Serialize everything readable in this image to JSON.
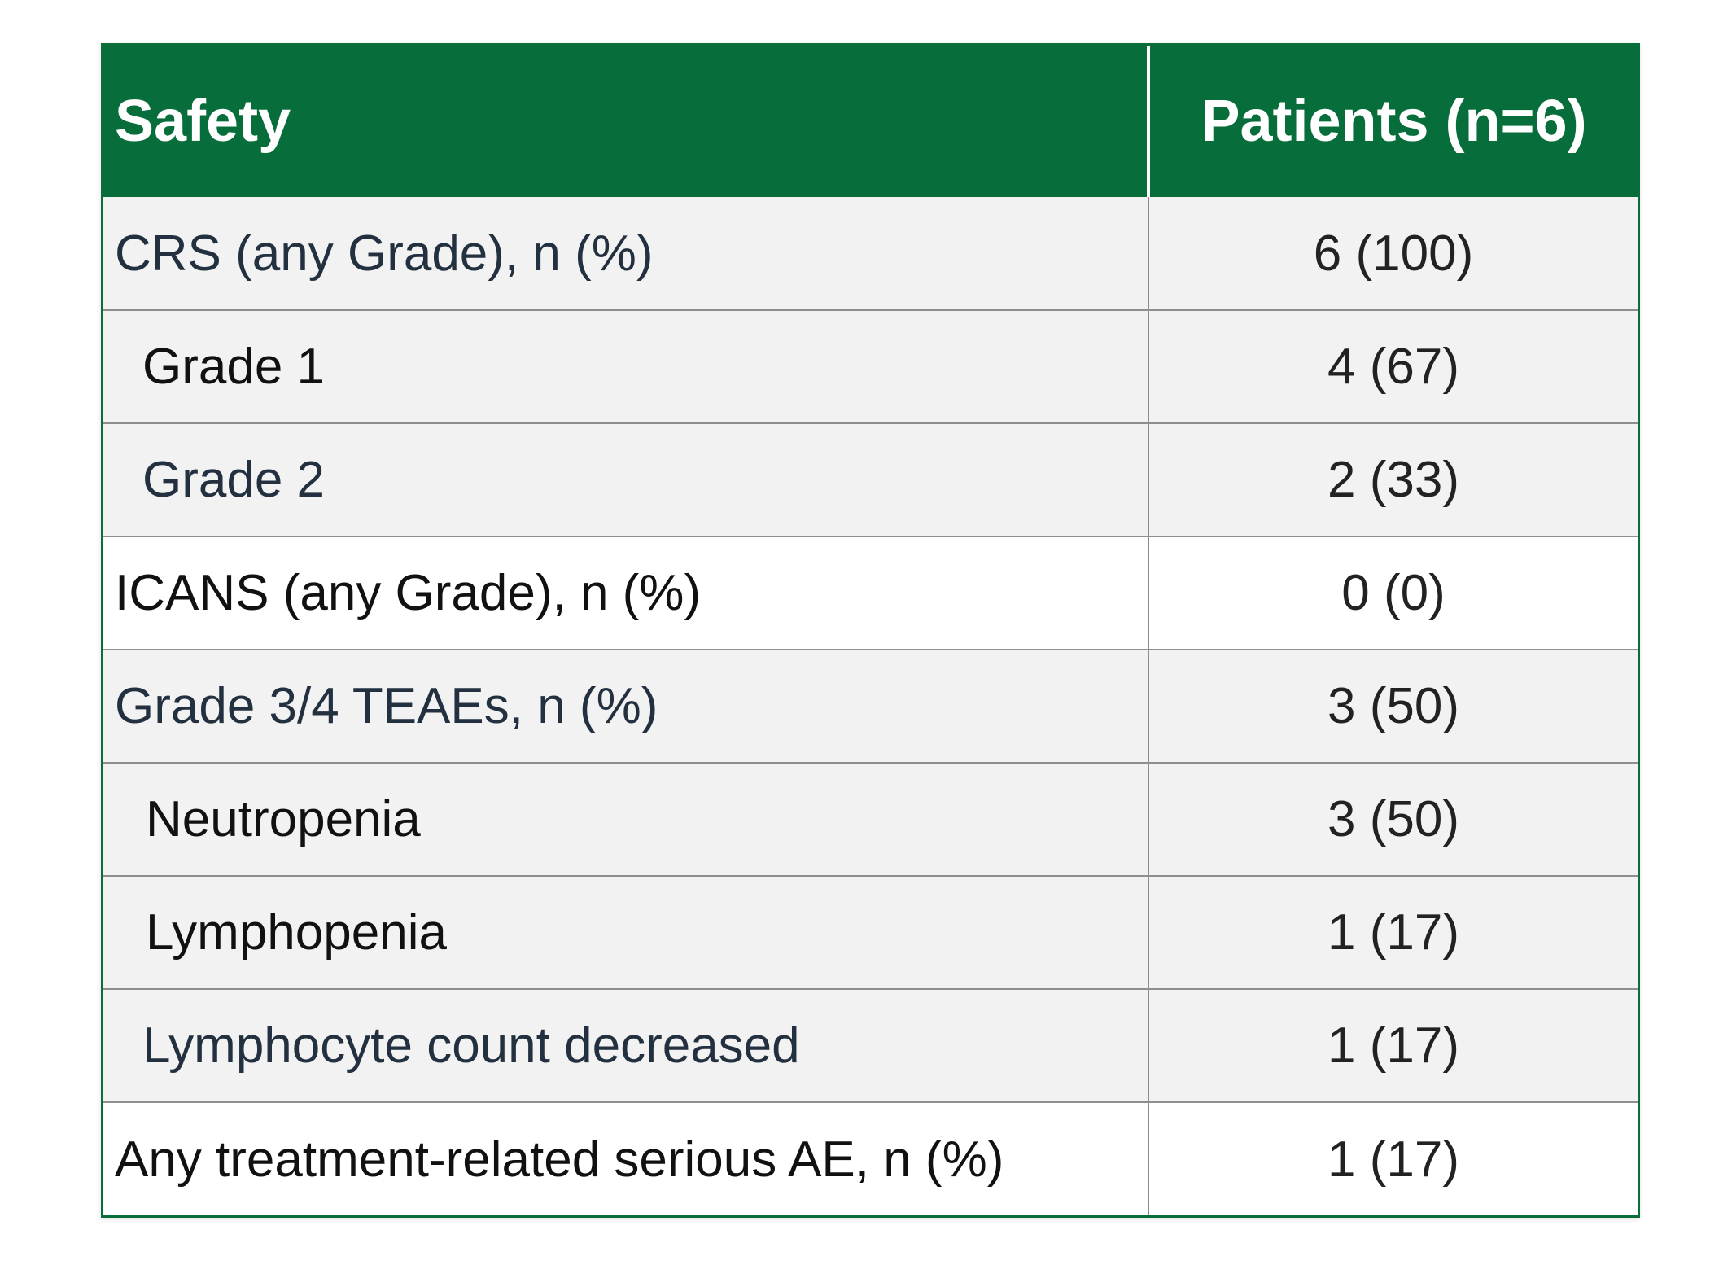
{
  "table": {
    "headers": {
      "safety": "Safety",
      "patients": "Patients (n=6)"
    },
    "rows": [
      {
        "label": "CRS (any Grade), n (%)",
        "value": "6 (100)",
        "indent": false,
        "shaded": true
      },
      {
        "label": "Grade 1",
        "value": "4 (67)",
        "indent": true,
        "shaded": true
      },
      {
        "label": "Grade 2",
        "value": "2 (33)",
        "indent": true,
        "shaded": true
      },
      {
        "label": "ICANS (any Grade), n (%)",
        "value": "0 (0)",
        "indent": false,
        "shaded": false
      },
      {
        "label": "Grade 3/4 TEAEs, n (%)",
        "value": "3 (50)",
        "indent": false,
        "shaded": true
      },
      {
        "label": "Neutropenia",
        "value": "3 (50)",
        "indent": true,
        "shaded": true
      },
      {
        "label": "Lymphopenia",
        "value": "1 (17)",
        "indent": true,
        "shaded": true
      },
      {
        "label": "Lymphocyte count decreased",
        "value": "1 (17)",
        "indent": true,
        "shaded": true
      },
      {
        "label": "Any treatment-related serious AE, n (%)",
        "value": "1 (17)",
        "indent": false,
        "shaded": false
      }
    ]
  },
  "colors": {
    "header_bg": "#076e3b",
    "header_text": "#ffffff",
    "shaded_row": "#f2f2f2",
    "plain_row": "#ffffff"
  }
}
